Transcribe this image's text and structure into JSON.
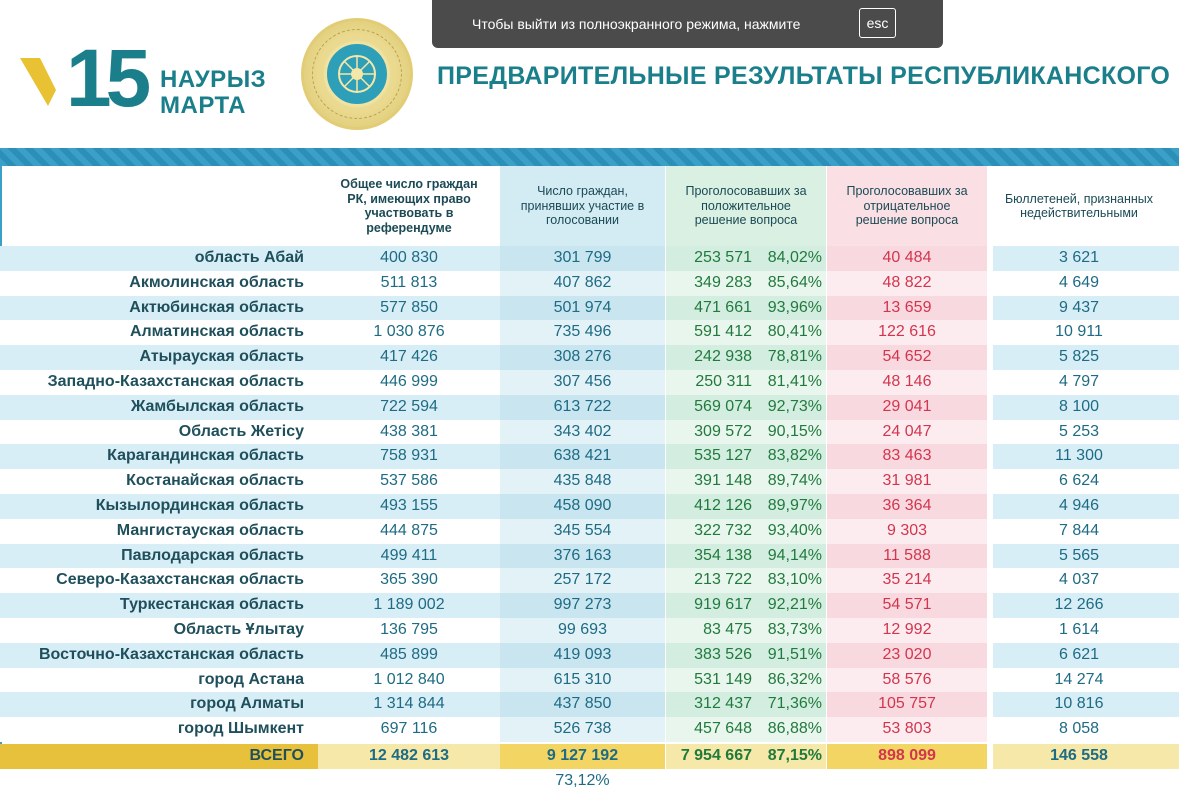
{
  "header": {
    "logo_number": "15",
    "logo_word_1": "НАУРЫЗ",
    "logo_word_2": "МАРТА",
    "title": "ПРЕДВАРИТЕЛЬНЫЕ РЕЗУЛЬТАТЫ РЕСПУБЛИКАНСКОГО"
  },
  "fullscreen_notice": {
    "text": "Чтобы выйти из полноэкранного режима, нажмите",
    "key": "esc"
  },
  "columns": [
    "Общее число граждан РК, имеющих право участвовать в референдуме",
    "Число граждан, принявших участие в голосовании",
    "Проголосовавших за положительное решение вопроса",
    "Проголосовавших за отрицательное решение вопроса",
    "Бюллетеней, признанных недействительными"
  ],
  "rows": [
    {
      "name": "область Абай",
      "eligible": "400 830",
      "voted": "301 799",
      "yes": "253 571",
      "yes_pct": "84,02%",
      "no": "40 484",
      "invalid": "3 621"
    },
    {
      "name": "Акмолинская область",
      "eligible": "511 813",
      "voted": "407 862",
      "yes": "349 283",
      "yes_pct": "85,64%",
      "no": "48 822",
      "invalid": "4 649"
    },
    {
      "name": "Актюбинская область",
      "eligible": "577 850",
      "voted": "501 974",
      "yes": "471 661",
      "yes_pct": "93,96%",
      "no": "13 659",
      "invalid": "9 437"
    },
    {
      "name": "Алматинская область",
      "eligible": "1 030 876",
      "voted": "735 496",
      "yes": "591 412",
      "yes_pct": "80,41%",
      "no": "122 616",
      "invalid": "10 911"
    },
    {
      "name": "Атырауская область",
      "eligible": "417 426",
      "voted": "308 276",
      "yes": "242 938",
      "yes_pct": "78,81%",
      "no": "54 652",
      "invalid": "5 825"
    },
    {
      "name": "Западно-Казахстанская область",
      "eligible": "446 999",
      "voted": "307 456",
      "yes": "250 311",
      "yes_pct": "81,41%",
      "no": "48 146",
      "invalid": "4 797"
    },
    {
      "name": "Жамбылская область",
      "eligible": "722 594",
      "voted": "613 722",
      "yes": "569 074",
      "yes_pct": "92,73%",
      "no": "29 041",
      "invalid": "8 100"
    },
    {
      "name": "Область Жетісу",
      "eligible": "438 381",
      "voted": "343 402",
      "yes": "309 572",
      "yes_pct": "90,15%",
      "no": "24 047",
      "invalid": "5 253"
    },
    {
      "name": "Карагандинская область",
      "eligible": "758 931",
      "voted": "638 421",
      "yes": "535 127",
      "yes_pct": "83,82%",
      "no": "83 463",
      "invalid": "11 300"
    },
    {
      "name": "Костанайская область",
      "eligible": "537 586",
      "voted": "435 848",
      "yes": "391 148",
      "yes_pct": "89,74%",
      "no": "31 981",
      "invalid": "6 624"
    },
    {
      "name": "Кызылординская область",
      "eligible": "493 155",
      "voted": "458 090",
      "yes": "412 126",
      "yes_pct": "89,97%",
      "no": "36 364",
      "invalid": "4 946"
    },
    {
      "name": "Мангистауская область",
      "eligible": "444 875",
      "voted": "345 554",
      "yes": "322 732",
      "yes_pct": "93,40%",
      "no": "9 303",
      "invalid": "7 844"
    },
    {
      "name": "Павлодарская область",
      "eligible": "499 411",
      "voted": "376 163",
      "yes": "354 138",
      "yes_pct": "94,14%",
      "no": "11 588",
      "invalid": "5 565"
    },
    {
      "name": "Северо-Казахстанская область",
      "eligible": "365 390",
      "voted": "257 172",
      "yes": "213 722",
      "yes_pct": "83,10%",
      "no": "35 214",
      "invalid": "4 037"
    },
    {
      "name": "Туркестанская область",
      "eligible": "1 189 002",
      "voted": "997 273",
      "yes": "919 617",
      "yes_pct": "92,21%",
      "no": "54 571",
      "invalid": "12 266"
    },
    {
      "name": "Область Ұлытау",
      "eligible": "136 795",
      "voted": "99 693",
      "yes": "83 475",
      "yes_pct": "83,73%",
      "no": "12 992",
      "invalid": "1 614"
    },
    {
      "name": "Восточно-Казахстанская область",
      "eligible": "485 899",
      "voted": "419 093",
      "yes": "383 526",
      "yes_pct": "91,51%",
      "no": "23 020",
      "invalid": "6 621"
    },
    {
      "name": "город Астана",
      "eligible": "1 012 840",
      "voted": "615 310",
      "yes": "531 149",
      "yes_pct": "86,32%",
      "no": "58 576",
      "invalid": "14 274"
    },
    {
      "name": "город Алматы",
      "eligible": "1 314 844",
      "voted": "437 850",
      "yes": "312 437",
      "yes_pct": "71,36%",
      "no": "105 757",
      "invalid": "10 816"
    },
    {
      "name": "город Шымкент",
      "eligible": "697 116",
      "voted": "526 738",
      "yes": "457 648",
      "yes_pct": "86,88%",
      "no": "53 803",
      "invalid": "8 058"
    }
  ],
  "total": {
    "name": "ВСЕГО",
    "eligible": "12 482 613",
    "voted": "9 127 192",
    "yes": "7 954 667",
    "yes_pct": "87,15%",
    "no": "898 099",
    "invalid": "146 558",
    "turnout_pct": "73,12%"
  },
  "colors": {
    "accent_teal": "#1a7f8a",
    "band_blue": "#3ba0c7",
    "yes_green": "#217a3d",
    "no_red": "#d3354f",
    "total_gold": "#f2d562"
  }
}
